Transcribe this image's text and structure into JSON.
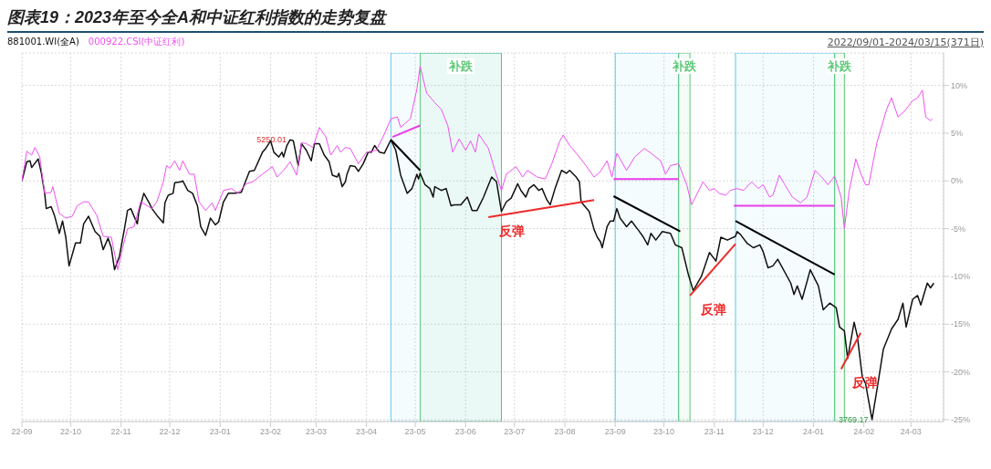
{
  "chart_data": {
    "type": "line",
    "title": "图表19：2023年至今全A和中证红利指数的走势复盘",
    "xlim": [
      "2022-09-01",
      "2024-03-21"
    ],
    "xticks": [
      {
        "value": "2022-09-01",
        "label": "22-09"
      },
      {
        "value": "2022-10-01",
        "label": "22-10"
      },
      {
        "value": "2022-11-01",
        "label": "22-11"
      },
      {
        "value": "2022-12-01",
        "label": "22-12"
      },
      {
        "value": "2023-01-01",
        "label": "23-01"
      },
      {
        "value": "2023-02-01",
        "label": "23-02"
      },
      {
        "value": "2023-03-01",
        "label": "23-03"
      },
      {
        "value": "2023-04-01",
        "label": "23-04"
      },
      {
        "value": "2023-05-01",
        "label": "23-05"
      },
      {
        "value": "2023-06-01",
        "label": "23-06"
      },
      {
        "value": "2023-07-01",
        "label": "23-07"
      },
      {
        "value": "2023-08-01",
        "label": "23-08"
      },
      {
        "value": "2023-09-01",
        "label": "23-09"
      },
      {
        "value": "2023-10-01",
        "label": "23-10"
      },
      {
        "value": "2023-11-01",
        "label": "23-11"
      },
      {
        "value": "2023-12-01",
        "label": "23-12"
      },
      {
        "value": "2024-01-01",
        "label": "24-01"
      },
      {
        "value": "2024-02-01",
        "label": "24-02"
      },
      {
        "value": "2024-03-01",
        "label": "24-03"
      }
    ],
    "ylim": [
      -25.2,
      13.4
    ],
    "yticks": [
      {
        "value": 10,
        "label": "10%"
      },
      {
        "value": 5,
        "label": "5%"
      },
      {
        "value": 0,
        "label": "0%"
      },
      {
        "value": -5,
        "label": "-5%"
      },
      {
        "value": -10,
        "label": "-10%"
      },
      {
        "value": -15,
        "label": "-15%"
      },
      {
        "value": -20,
        "label": "-20%"
      },
      {
        "value": -25,
        "label": "-25%"
      }
    ],
    "grid": true,
    "legend": "top left",
    "series": [
      {
        "name": "881001.WI(全A)",
        "color": "#111111",
        "x": [
          "2022-09-01",
          "2022-09-04",
          "2022-09-06",
          "2022-09-07",
          "2022-09-11",
          "2022-09-13",
          "2022-09-15",
          "2022-09-16",
          "2022-09-19",
          "2022-09-21",
          "2022-09-24",
          "2022-09-26",
          "2022-09-28",
          "2022-09-30",
          "2022-10-04",
          "2022-10-07",
          "2022-10-09",
          "2022-10-12",
          "2022-10-16",
          "2022-10-19",
          "2022-10-21",
          "2022-10-24",
          "2022-10-26",
          "2022-10-28",
          "2022-10-31",
          "2022-11-03",
          "2022-11-05",
          "2022-11-07",
          "2022-11-11",
          "2022-11-12",
          "2022-11-15",
          "2022-11-18",
          "2022-11-20",
          "2022-11-23",
          "2022-11-27",
          "2022-11-28",
          "2022-11-30",
          "2022-12-03",
          "2022-12-04",
          "2022-12-08",
          "2022-12-09",
          "2022-12-12",
          "2022-12-15",
          "2022-12-18",
          "2022-12-20",
          "2022-12-23",
          "2022-12-26",
          "2022-12-29",
          "2022-12-31",
          "2023-01-03",
          "2023-01-06",
          "2023-01-10",
          "2023-01-14",
          "2023-01-19",
          "2023-01-22",
          "2023-01-27",
          "2023-01-29",
          "2023-02-01",
          "2023-02-03",
          "2023-02-06",
          "2023-02-08",
          "2023-02-09",
          "2023-02-11",
          "2023-02-13",
          "2023-02-15",
          "2023-02-18",
          "2023-02-20",
          "2023-02-23",
          "2023-02-26",
          "2023-02-28",
          "2023-03-03",
          "2023-03-06",
          "2023-03-09",
          "2023-03-11",
          "2023-03-14",
          "2023-03-15",
          "2023-03-17",
          "2023-03-19",
          "2023-03-20",
          "2023-03-22",
          "2023-03-25",
          "2023-03-27",
          "2023-03-30",
          "2023-04-02",
          "2023-04-04",
          "2023-04-06",
          "2023-04-09",
          "2023-04-12",
          "2023-04-16",
          "2023-04-19",
          "2023-04-22",
          "2023-04-26",
          "2023-04-29",
          "2023-05-02",
          "2023-05-03",
          "2023-05-04",
          "2023-05-07",
          "2023-05-10",
          "2023-05-12",
          "2023-05-13",
          "2023-05-17",
          "2023-05-20",
          "2023-05-23",
          "2023-05-25",
          "2023-05-29",
          "2023-06-02",
          "2023-06-05",
          "2023-06-08",
          "2023-06-12",
          "2023-06-17",
          "2023-06-20",
          "2023-06-23",
          "2023-06-26",
          "2023-06-29",
          "2023-07-03",
          "2023-07-05",
          "2023-07-08",
          "2023-07-10",
          "2023-07-13",
          "2023-07-16",
          "2023-07-18",
          "2023-07-21",
          "2023-07-23",
          "2023-07-26",
          "2023-07-30",
          "2023-08-02",
          "2023-08-04",
          "2023-08-08",
          "2023-08-10",
          "2023-08-11",
          "2023-08-16",
          "2023-08-19",
          "2023-08-21",
          "2023-08-23",
          "2023-08-24",
          "2023-08-27",
          "2023-08-29",
          "2023-08-31",
          "2023-09-02",
          "2023-09-04",
          "2023-09-08",
          "2023-09-11",
          "2023-09-15",
          "2023-09-18",
          "2023-09-21",
          "2023-09-23",
          "2023-09-26",
          "2023-09-30",
          "2023-10-05",
          "2023-10-08",
          "2023-10-12",
          "2023-10-16",
          "2023-10-19",
          "2023-10-24",
          "2023-10-29",
          "2023-11-02",
          "2023-11-05",
          "2023-11-09",
          "2023-11-14",
          "2023-11-15",
          "2023-11-17",
          "2023-11-21",
          "2023-11-25",
          "2023-11-29",
          "2023-12-01",
          "2023-12-04",
          "2023-12-07",
          "2023-12-10",
          "2023-12-18",
          "2023-12-20",
          "2023-12-22",
          "2023-12-25",
          "2023-12-30",
          "2024-01-04",
          "2024-01-07",
          "2024-01-11",
          "2024-01-15",
          "2024-01-17",
          "2024-01-20",
          "2024-01-22",
          "2024-01-26",
          "2024-01-28",
          "2024-01-31",
          "2024-02-02",
          "2024-02-06",
          "2024-02-09",
          "2024-02-13",
          "2024-02-18",
          "2024-02-22",
          "2024-02-25",
          "2024-02-27",
          "2024-03-02",
          "2024-03-05",
          "2024-03-07",
          "2024-03-11",
          "2024-03-13",
          "2024-03-15"
        ],
        "values": [
          0.0,
          2.0,
          2.1,
          1.4,
          2.3,
          0.8,
          -1.3,
          -2.9,
          -2.7,
          -3.6,
          -5.5,
          -4.2,
          -5.9,
          -8.9,
          -6.5,
          -6.5,
          -4.5,
          -3.7,
          -5.3,
          -5.8,
          -7.2,
          -6.0,
          -7.0,
          -9.3,
          -7.9,
          -5.1,
          -3.1,
          -2.9,
          -4.5,
          -3.2,
          -1.3,
          -2.2,
          -2.9,
          -3.6,
          -4.4,
          -2.3,
          -1.5,
          -1.3,
          -0.2,
          -0.1,
          0.0,
          -1.0,
          -1.3,
          -2.6,
          -4.8,
          -5.7,
          -3.9,
          -4.6,
          -4.3,
          -2.2,
          -1.3,
          -1.3,
          -1.2,
          1.0,
          1.1,
          3.0,
          3.4,
          4.2,
          3.0,
          2.5,
          3.0,
          2.5,
          3.7,
          4.3,
          4.2,
          1.6,
          3.9,
          3.2,
          2.1,
          3.9,
          3.9,
          2.7,
          2.0,
          0.6,
          0.4,
          0.8,
          -0.6,
          -0.1,
          0.7,
          1.6,
          1.5,
          1.0,
          1.8,
          3.0,
          3.0,
          3.7,
          3.0,
          2.9,
          4.3,
          3.2,
          0.6,
          -1.3,
          -0.8,
          0.7,
          0.2,
          0.8,
          -0.4,
          -0.8,
          -1.7,
          -0.6,
          -1.0,
          -0.8,
          -2.6,
          -2.5,
          -2.5,
          -1.7,
          -3.1,
          -3.1,
          -1.7,
          0.4,
          -0.1,
          -3.2,
          -2.2,
          -1.8,
          -0.3,
          -1.0,
          -1.7,
          -0.8,
          -0.4,
          -1.0,
          -0.8,
          -2.0,
          -2.5,
          -0.8,
          1.1,
          0.8,
          1.1,
          0.4,
          -0.1,
          -2.2,
          -3.2,
          -5.1,
          -5.9,
          -6.4,
          -7.0,
          -4.8,
          -4.2,
          -4.2,
          -2.9,
          -3.9,
          -4.8,
          -4.2,
          -5.1,
          -5.8,
          -6.7,
          -5.5,
          -6.2,
          -5.3,
          -5.5,
          -6.7,
          -7.0,
          -9.8,
          -11.5,
          -10.0,
          -7.5,
          -8.4,
          -5.9,
          -6.2,
          -5.8,
          -5.3,
          -5.6,
          -6.5,
          -7.0,
          -6.7,
          -7.4,
          -9.1,
          -8.9,
          -8.2,
          -10.7,
          -11.9,
          -11.0,
          -12.4,
          -9.3,
          -11.0,
          -13.5,
          -12.8,
          -13.3,
          -15.3,
          -15.7,
          -18.6,
          -14.8,
          -16.3,
          -20.5,
          -21.2,
          -25.0,
          -21.9,
          -17.6,
          -15.5,
          -14.5,
          -12.8,
          -15.3,
          -12.4,
          -12.0,
          -13.0,
          -10.7,
          -11.2,
          -10.7
        ]
      },
      {
        "name": "000922.CSI(中证红利)",
        "color": "#f050f0",
        "x": [
          "2022-09-01",
          "2022-09-04",
          "2022-09-07",
          "2022-09-09",
          "2022-09-12",
          "2022-09-15",
          "2022-09-19",
          "2022-09-20",
          "2022-09-24",
          "2022-09-28",
          "2022-10-02",
          "2022-10-05",
          "2022-10-09",
          "2022-10-12",
          "2022-10-17",
          "2022-10-21",
          "2022-10-26",
          "2022-10-30",
          "2022-11-02",
          "2022-11-05",
          "2022-11-09",
          "2022-11-13",
          "2022-11-18",
          "2022-11-20",
          "2022-11-23",
          "2022-11-27",
          "2022-11-29",
          "2022-12-01",
          "2022-12-04",
          "2022-12-07",
          "2022-12-09",
          "2022-12-13",
          "2022-12-16",
          "2022-12-19",
          "2022-12-23",
          "2022-12-27",
          "2022-12-29",
          "2023-01-03",
          "2023-01-08",
          "2023-01-12",
          "2023-01-17",
          "2023-01-21",
          "2023-01-27",
          "2023-02-02",
          "2023-02-05",
          "2023-02-09",
          "2023-02-13",
          "2023-02-17",
          "2023-02-20",
          "2023-02-23",
          "2023-02-27",
          "2023-03-03",
          "2023-03-07",
          "2023-03-10",
          "2023-03-14",
          "2023-03-16",
          "2023-03-19",
          "2023-03-22",
          "2023-03-27",
          "2023-04-01",
          "2023-04-07",
          "2023-04-12",
          "2023-04-16",
          "2023-04-20",
          "2023-04-22",
          "2023-04-28",
          "2023-05-02",
          "2023-05-04",
          "2023-05-08",
          "2023-05-13",
          "2023-05-17",
          "2023-05-21",
          "2023-05-24",
          "2023-05-28",
          "2023-06-01",
          "2023-06-04",
          "2023-06-07",
          "2023-06-09",
          "2023-06-15",
          "2023-06-19",
          "2023-06-23",
          "2023-06-26",
          "2023-07-02",
          "2023-07-06",
          "2023-07-09",
          "2023-07-15",
          "2023-07-20",
          "2023-07-24",
          "2023-07-29",
          "2023-07-31",
          "2023-08-04",
          "2023-08-09",
          "2023-08-14",
          "2023-08-19",
          "2023-08-23",
          "2023-08-27",
          "2023-08-30",
          "2023-09-02",
          "2023-09-08",
          "2023-09-13",
          "2023-09-19",
          "2023-09-23",
          "2023-09-29",
          "2023-10-02",
          "2023-10-05",
          "2023-10-10",
          "2023-10-15",
          "2023-10-18",
          "2023-10-25",
          "2023-10-29",
          "2023-11-01",
          "2023-11-04",
          "2023-11-08",
          "2023-11-11",
          "2023-11-15",
          "2023-11-19",
          "2023-11-24",
          "2023-11-28",
          "2023-12-01",
          "2023-12-05",
          "2023-12-07",
          "2023-12-11",
          "2023-12-14",
          "2023-12-19",
          "2023-12-24",
          "2023-12-28",
          "2024-01-02",
          "2024-01-06",
          "2024-01-10",
          "2024-01-14",
          "2024-01-18",
          "2024-01-20",
          "2024-01-23",
          "2024-01-27",
          "2024-01-30",
          "2024-02-02",
          "2024-02-04",
          "2024-02-09",
          "2024-02-15",
          "2024-02-18",
          "2024-02-22",
          "2024-02-26",
          "2024-03-02",
          "2024-03-05",
          "2024-03-08",
          "2024-03-10",
          "2024-03-13",
          "2024-03-14"
        ],
        "values": [
          0.0,
          3.1,
          2.7,
          3.5,
          2.5,
          -1.3,
          -1.2,
          -0.6,
          -3.4,
          -3.9,
          -3.7,
          -2.6,
          -2.2,
          -2.2,
          -3.6,
          -5.8,
          -5.9,
          -9.3,
          -7.0,
          -5.0,
          -4.8,
          -2.2,
          -2.7,
          -2.9,
          -2.2,
          -0.1,
          1.6,
          1.3,
          2.1,
          1.1,
          2.1,
          0.7,
          0.7,
          -2.2,
          -3.1,
          -2.3,
          -3.1,
          -1.0,
          -0.8,
          -1.3,
          -0.3,
          -0.1,
          0.7,
          1.5,
          0.4,
          1.1,
          2.0,
          0.6,
          4.0,
          3.9,
          3.5,
          5.6,
          4.6,
          2.7,
          3.7,
          3.0,
          3.5,
          3.4,
          1.8,
          3.0,
          3.2,
          4.9,
          6.5,
          6.7,
          5.6,
          6.5,
          9.6,
          12.0,
          9.2,
          8.2,
          7.5,
          5.8,
          3.0,
          4.4,
          3.2,
          4.2,
          3.0,
          4.9,
          3.4,
          1.1,
          -1.0,
          0.7,
          1.5,
          0.4,
          1.1,
          0.4,
          0.2,
          1.8,
          4.2,
          4.8,
          3.7,
          2.7,
          1.6,
          0.4,
          1.0,
          2.1,
          0.4,
          2.9,
          1.1,
          2.5,
          3.4,
          2.9,
          2.1,
          0.7,
          1.6,
          1.8,
          -0.4,
          -2.5,
          -0.1,
          -1.0,
          -0.8,
          -1.3,
          -1.5,
          -1.0,
          -0.8,
          -1.0,
          -0.1,
          -0.8,
          -0.4,
          -1.7,
          -1.5,
          0.6,
          -0.3,
          -1.7,
          -2.3,
          -1.7,
          1.1,
          0.4,
          -0.4,
          0.5,
          -1.7,
          -5.0,
          -1.0,
          2.3,
          0.8,
          -0.4,
          -0.4,
          4.0,
          7.5,
          8.7,
          6.7,
          7.3,
          8.4,
          8.7,
          9.5,
          6.7,
          6.3,
          6.5
        ]
      },
      {
        "color": "#e83ee8",
        "x": [
          "2023-04-17",
          "2023-05-04"
        ],
        "values": [
          4.6,
          5.8
        ]
      },
      {
        "color": "#000000",
        "x": [
          "2023-04-16",
          "2023-05-04"
        ],
        "values": [
          4.3,
          1.1
        ]
      },
      {
        "color": "#ee2a2a",
        "x": [
          "2023-06-15",
          "2023-08-19"
        ],
        "values": [
          -3.8,
          -2.0
        ]
      },
      {
        "color": "#e83ee8",
        "x": [
          "2023-08-31",
          "2023-10-10"
        ],
        "values": [
          0.2,
          0.2
        ]
      },
      {
        "color": "#000000",
        "x": [
          "2023-08-31",
          "2023-10-11"
        ],
        "values": [
          -1.6,
          -5.3
        ]
      },
      {
        "color": "#ee2a2a",
        "x": [
          "2023-10-17",
          "2023-11-14"
        ],
        "values": [
          -12.0,
          -6.6
        ]
      },
      {
        "color": "#000000",
        "x": [
          "2023-11-14",
          "2024-01-14"
        ],
        "values": [
          -4.2,
          -9.8
        ]
      },
      {
        "color": "#e83ee8",
        "x": [
          "2023-11-13",
          "2024-01-14"
        ],
        "values": [
          -2.6,
          -2.6
        ]
      },
      {
        "color": "#ee2a2a",
        "x": [
          "2024-01-18",
          "2024-01-30"
        ],
        "values": [
          -19.7,
          -15.9
        ]
      }
    ],
    "bands": [
      {
        "axis": "x",
        "from": "2023-04-16",
        "to": "2023-06-23",
        "color": "#5bc8f0"
      },
      {
        "axis": "x",
        "from": "2023-05-04",
        "to": "2023-06-23",
        "label": "补跌",
        "color": "#5cc878"
      },
      {
        "axis": "x",
        "from": "2023-09-01",
        "to": "2023-10-10",
        "color": "#5bc8f0"
      },
      {
        "axis": "x",
        "from": "2023-10-10",
        "to": "2023-10-17",
        "label": "补跌",
        "color": "#5cc878"
      },
      {
        "axis": "x",
        "from": "2023-11-14",
        "to": "2024-01-14",
        "color": "#5bc8f0"
      },
      {
        "axis": "x",
        "from": "2024-01-14",
        "to": "2024-01-20",
        "label": "补跌",
        "color": "#5cc878"
      }
    ],
    "annotations": [
      "2022/09/01-2024/03/15(371日)",
      {
        "text": "5250.01",
        "x": "2023-02-13",
        "y": 4.3
      },
      {
        "text": "3769.17",
        "x": "2024-02-06",
        "y": -25.0
      },
      {
        "text": "反弹",
        "x": "2023-06-15",
        "y": -3.8
      },
      {
        "text": "反弹",
        "x": "2023-10-17",
        "y": -12.0
      },
      {
        "text": "反弹",
        "x": "2024-01-18",
        "y": -19.7
      }
    ]
  }
}
